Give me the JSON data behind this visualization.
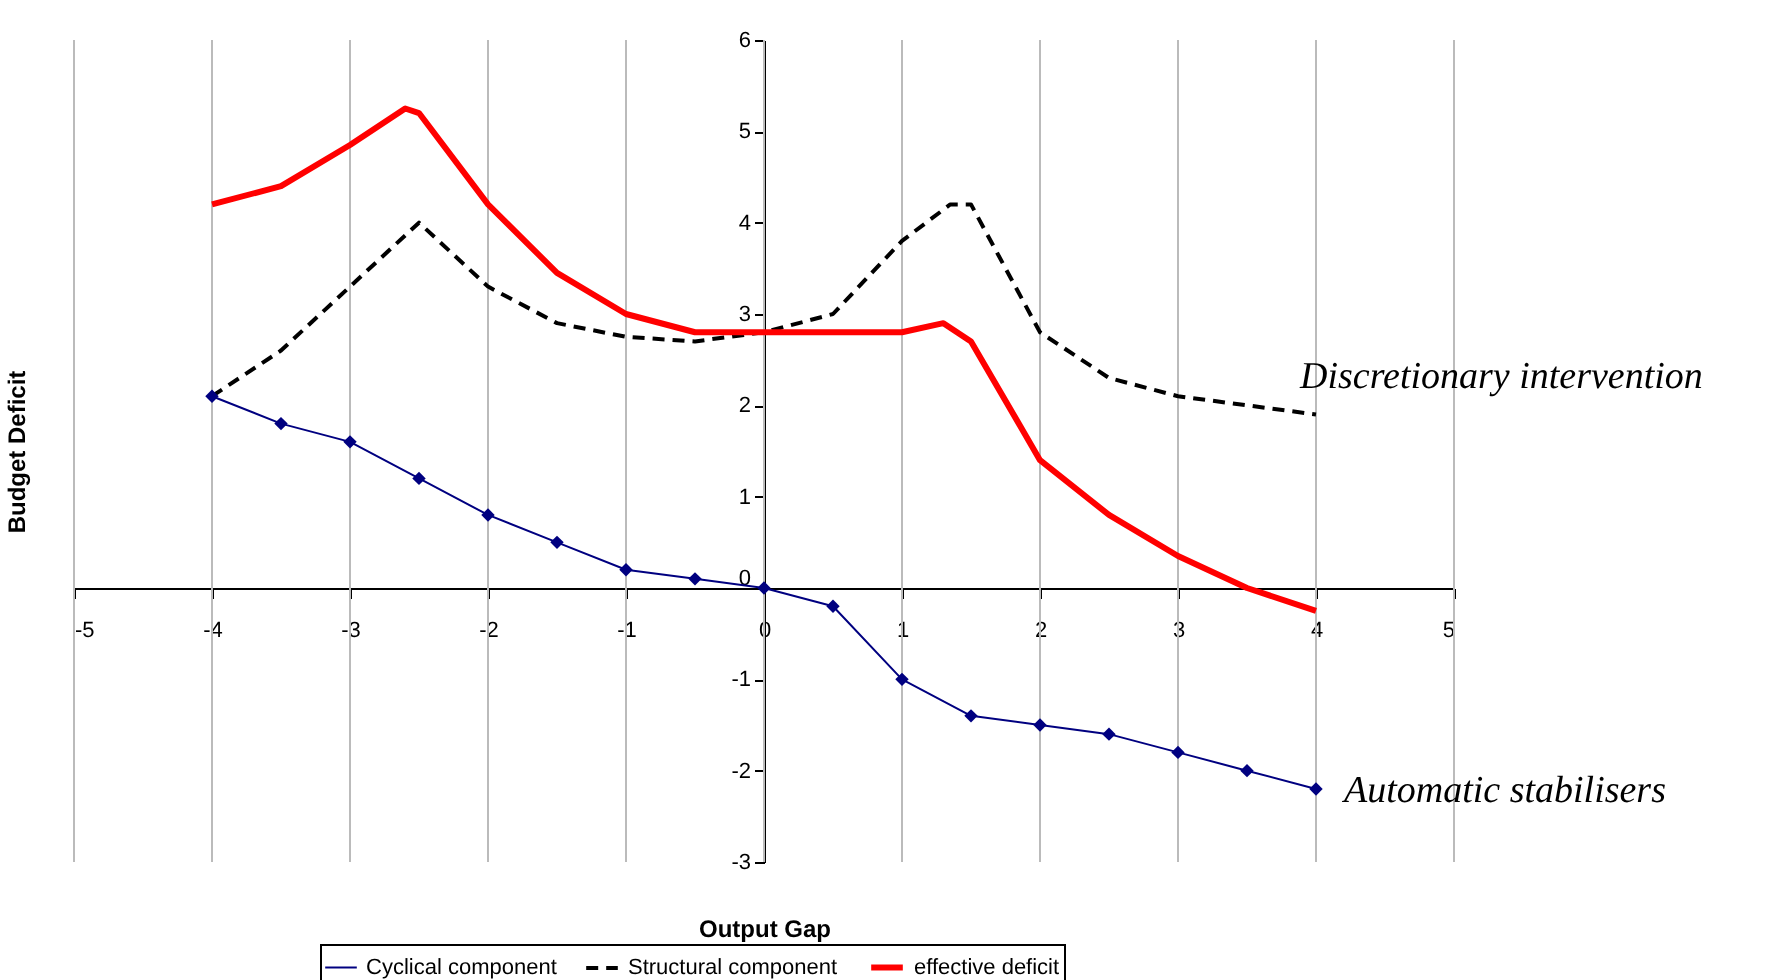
{
  "chart_data": {
    "type": "line",
    "xlabel": "Output Gap",
    "ylabel": "Budget Deficit",
    "x": [
      -4,
      -3.5,
      -3,
      -2.5,
      -2,
      -1.5,
      -1,
      -0.5,
      0,
      0.5,
      1,
      1.5,
      2,
      2.5,
      3,
      3.5,
      4
    ],
    "series": [
      {
        "name": "Cyclical component",
        "color": "#000080",
        "marker": "diamond",
        "line_style": "solid",
        "values": [
          2.1,
          1.8,
          1.6,
          1.2,
          0.8,
          0.5,
          0.2,
          0.1,
          0,
          -0.2,
          -1,
          -1.4,
          -1.5,
          -1.6,
          -1.8,
          -2,
          -2.2
        ]
      },
      {
        "name": "Structural component",
        "color": "#000000",
        "marker": "none",
        "line_style": "dashed",
        "x": [
          -4,
          -3.5,
          -3,
          -2.5,
          -2,
          -1.5,
          -1,
          -0.5,
          0,
          0.5,
          1,
          1.35,
          1.5,
          2,
          2.5,
          3,
          3.5,
          4
        ],
        "values": [
          2.1,
          2.6,
          3.3,
          4.0,
          3.3,
          2.9,
          2.75,
          2.7,
          2.8,
          3.0,
          3.8,
          4.2,
          4.2,
          2.8,
          2.3,
          2.1,
          2.0,
          1.9
        ]
      },
      {
        "name": "effective deficit",
        "color": "#ff0000",
        "marker": "none",
        "line_style": "solid",
        "x": [
          -4,
          -3.5,
          -3,
          -2.6,
          -2.5,
          -2,
          -1.5,
          -1,
          -0.5,
          0,
          0.5,
          1,
          1.3,
          1.5,
          2,
          2.5,
          3,
          3.5,
          4
        ],
        "values": [
          4.2,
          4.4,
          4.85,
          5.25,
          5.2,
          4.2,
          3.45,
          3.0,
          2.8,
          2.8,
          2.8,
          2.8,
          2.9,
          2.7,
          1.4,
          0.8,
          0.35,
          0,
          -0.25
        ]
      }
    ],
    "annotations": [
      "Discretionary intervention",
      "Automatic stabilisers"
    ],
    "xlim": [
      -5,
      5
    ],
    "xticks": [
      -5,
      -4,
      -3,
      -2,
      -1,
      0,
      1,
      2,
      3,
      4,
      5
    ],
    "ylim": [
      -3,
      6
    ],
    "yticks": [
      -3,
      -2,
      -1,
      0,
      1,
      2,
      3,
      4,
      5,
      6
    ],
    "grid": "x",
    "legend": "bottom"
  }
}
